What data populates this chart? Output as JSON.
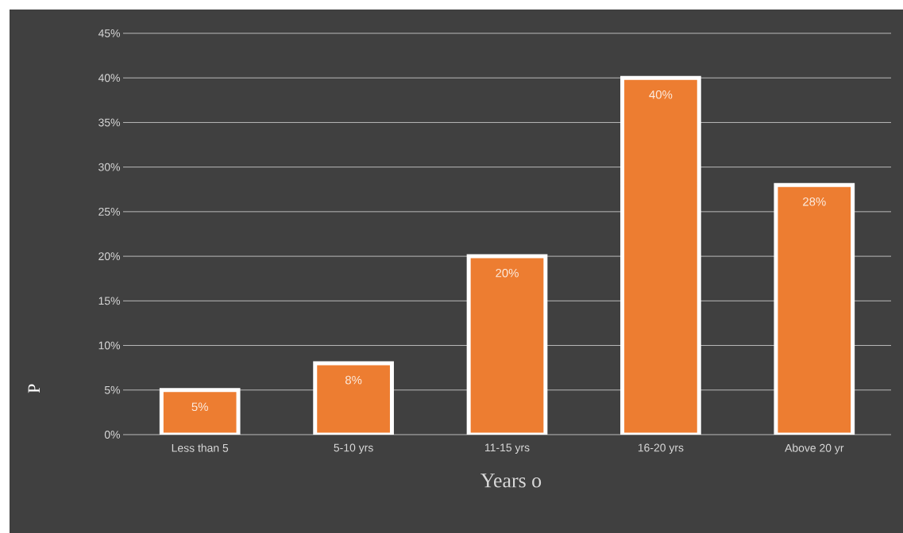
{
  "chart_data": {
    "type": "bar",
    "xlabel": "Years o",
    "ylabel": "P",
    "categories": [
      "Less than 5",
      "5-10 yrs",
      "11-15 yrs",
      "16-20 yrs",
      "Above 20 yr"
    ],
    "values": [
      5,
      8,
      20,
      40,
      28
    ],
    "value_labels": [
      "5%",
      "8%",
      "20%",
      "40%",
      "28%"
    ],
    "color": "#ed7d31",
    "ylim": [
      0,
      45
    ],
    "yticks": [
      {
        "value": 0,
        "label": "0%"
      },
      {
        "value": 5,
        "label": "5%"
      },
      {
        "value": 10,
        "label": "10%"
      },
      {
        "value": 15,
        "label": "15%"
      },
      {
        "value": 20,
        "label": "20%"
      },
      {
        "value": 25,
        "label": "25%"
      },
      {
        "value": 30,
        "label": "30%"
      },
      {
        "value": 35,
        "label": "35%"
      },
      {
        "value": 40,
        "label": "40%"
      },
      {
        "value": 45,
        "label": "45%"
      }
    ],
    "grid": "y"
  }
}
